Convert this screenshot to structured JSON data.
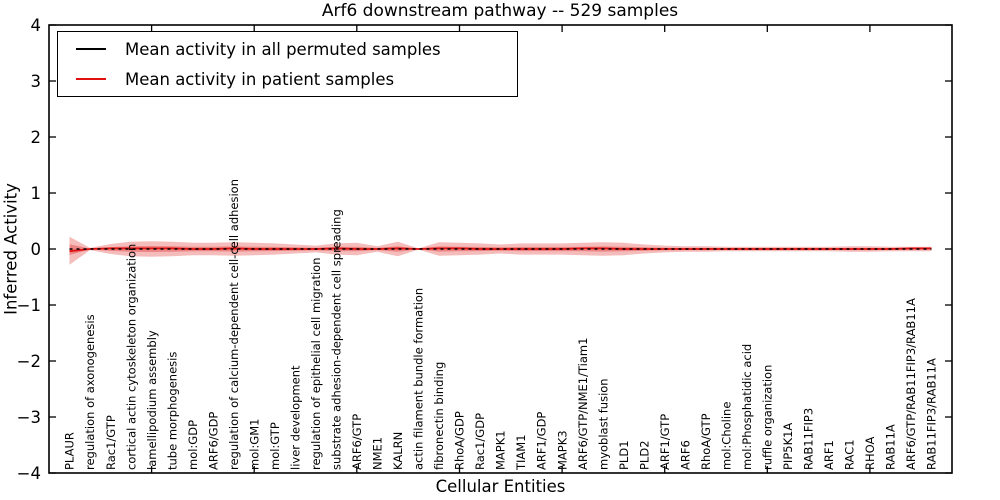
{
  "title": "Arf6 downstream pathway -- 529 samples",
  "legend": {
    "items": [
      {
        "label": "Mean activity in all permuted samples",
        "color": "#000000"
      },
      {
        "label": "Mean activity in patient samples",
        "color": "#e01010"
      }
    ]
  },
  "axes": {
    "xlabel": "Cellular Entities",
    "ylabel": "Inferred Activity"
  },
  "chart_data": {
    "type": "line",
    "title": "Arf6 downstream pathway -- 529 samples",
    "xlabel": "Cellular Entities",
    "ylabel": "Inferred Activity",
    "ylim": [
      -4,
      4
    ],
    "yticks": [
      -4,
      -3,
      -2,
      -1,
      0,
      1,
      2,
      3,
      4
    ],
    "x_range": [
      0,
      44
    ],
    "x_major_tick_step": 5,
    "grid": false,
    "legend_position": "upper left",
    "categories": [
      "PLAUR",
      "regulation of axonogenesis",
      "Rac1/GTP",
      "cortical actin cytoskeleton organization",
      "lamellipodium assembly",
      "tube morphogenesis",
      "mol:GDP",
      "ARF6/GDP",
      "regulation of calcium-dependent cell-cell adhesion",
      "mol:GM1",
      "mol:GTP",
      "liver development",
      "regulation of epithelial cell migration",
      "substrate adhesion-dependent cell spreading",
      "ARF6/GTP",
      "NME1",
      "KALRN",
      "actin filament bundle formation",
      "fibronectin binding",
      "RhoA/GDP",
      "Rac1/GDP",
      "MAPK1",
      "TIAM1",
      "ARF1/GDP",
      "MAPK3",
      "ARF6/GTP/NME1/Tiam1",
      "myoblast fusion",
      "PLD1",
      "PLD2",
      "ARF1/GTP",
      "ARF6",
      "RhoA/GTP",
      "mol:Choline",
      "mol:Phosphatidic acid",
      "ruffle organization",
      "PIP5K1A",
      "RAB11FIP3",
      "ARF1",
      "RAC1",
      "RHOA",
      "RAB11A",
      "ARF6/GTP/RAB11FIP3/RAB11A",
      "RAB11FIP3/RAB11A"
    ],
    "series": [
      {
        "name": "Mean activity in all permuted samples",
        "color": "#000000",
        "style": "dashed",
        "values": [
          0,
          0,
          0,
          0,
          0,
          0,
          0,
          0,
          0,
          0,
          0,
          0,
          0,
          0,
          0,
          0,
          0,
          0,
          0,
          0,
          0,
          0,
          0,
          0,
          0,
          0,
          0,
          0,
          0,
          0,
          0,
          0,
          0,
          0,
          0,
          0,
          0,
          0,
          0,
          0,
          0,
          0,
          0
        ]
      },
      {
        "name": "Mean activity in patient samples",
        "color": "#e01010",
        "style": "solid",
        "values": [
          -0.04,
          0,
          0.01,
          0.01,
          0.01,
          0.01,
          0,
          0,
          0.01,
          0,
          0,
          0,
          0,
          0.01,
          0,
          0,
          0.01,
          0,
          0.01,
          0.01,
          0,
          0,
          0,
          0,
          0,
          0.01,
          0.01,
          0,
          0,
          0,
          0,
          0,
          0,
          0,
          0,
          0,
          0,
          0,
          0,
          0,
          0,
          0.01,
          0.01
        ]
      }
    ],
    "band": {
      "name": "patient sample activity spread",
      "fill": "#e03030",
      "outer_opacity": 0.32,
      "inner_opacity": 0.4,
      "inner_scale": 0.38,
      "upper": [
        0.22,
        0.02,
        0.09,
        0.13,
        0.14,
        0.13,
        0.11,
        0.11,
        0.12,
        0.11,
        0.1,
        0.08,
        0.06,
        0.1,
        0.11,
        0.05,
        0.13,
        0.01,
        0.12,
        0.11,
        0.1,
        0.08,
        0.1,
        0.1,
        0.1,
        0.11,
        0.12,
        0.11,
        0.08,
        0.06,
        0.05,
        0.05,
        0.04,
        0.04,
        0.04,
        0.04,
        0.04,
        0.04,
        0.05,
        0.05,
        0.04,
        0.04,
        0.04
      ],
      "lower": [
        -0.28,
        -0.02,
        -0.09,
        -0.13,
        -0.14,
        -0.13,
        -0.11,
        -0.11,
        -0.12,
        -0.11,
        -0.1,
        -0.08,
        -0.06,
        -0.1,
        -0.11,
        -0.05,
        -0.13,
        -0.01,
        -0.12,
        -0.11,
        -0.1,
        -0.08,
        -0.1,
        -0.1,
        -0.1,
        -0.11,
        -0.12,
        -0.11,
        -0.08,
        -0.06,
        -0.05,
        -0.05,
        -0.04,
        -0.04,
        -0.04,
        -0.04,
        -0.04,
        -0.04,
        -0.05,
        -0.05,
        -0.04,
        -0.04,
        -0.04
      ]
    }
  }
}
